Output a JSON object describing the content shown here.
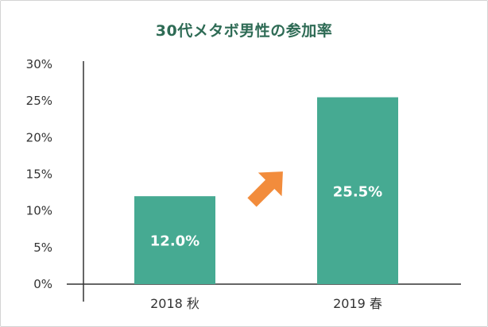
{
  "chart_data": {
    "type": "bar",
    "title": "30代メタボ男性の参加率",
    "categories": [
      "2018 秋",
      "2019 春"
    ],
    "values": [
      12.0,
      25.5
    ],
    "value_labels": [
      "12.0%",
      "25.5%"
    ],
    "ylim": [
      0,
      30
    ],
    "yticks": [
      0,
      5,
      10,
      15,
      20,
      25,
      30
    ],
    "ytick_labels": [
      "0%",
      "5%",
      "10%",
      "15%",
      "20%",
      "25%",
      "30%"
    ],
    "grid": false,
    "annotation": "increase-arrow",
    "colors": {
      "bar": "#46aa92",
      "arrow": "#f28c3c",
      "title": "#2e6b55",
      "axis": "#333333"
    }
  }
}
